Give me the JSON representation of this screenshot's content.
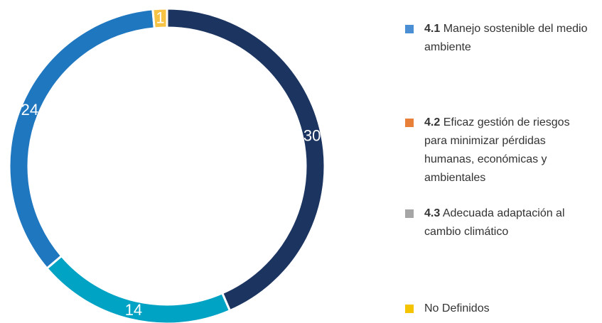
{
  "chart_data": {
    "type": "donut",
    "values": [
      30,
      14,
      24,
      1
    ],
    "colors": [
      "#1c3560",
      "#00a3c4",
      "#1f77c0",
      "#f6c344"
    ],
    "legend": [
      {
        "code": "4.1",
        "text": "Manejo sostenible del medio ambiente",
        "color": "#4a8fd3"
      },
      {
        "code": "4.2",
        "text": "Eficaz gestión de riesgos para minimizar pérdidas humanas, económicas y ambientales",
        "color": "#e8803a"
      },
      {
        "code": "4.3",
        "text": "Adecuada adaptación al cambio climático",
        "color": "#a6a6a6"
      },
      {
        "text": "No Definidos",
        "color": "#f5c400"
      }
    ]
  }
}
